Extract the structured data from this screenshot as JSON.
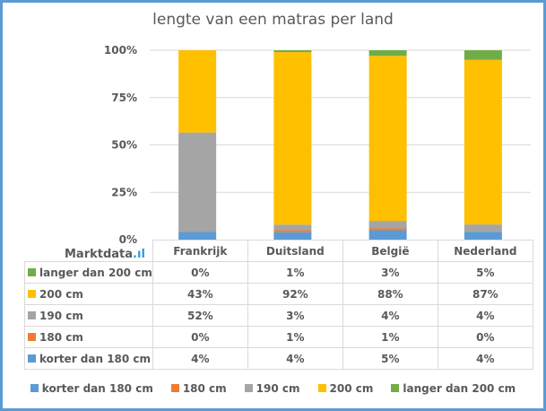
{
  "chart_data": {
    "type": "bar",
    "stacked": "percent",
    "title": "lengte van een matras per land",
    "categories": [
      "Frankrijk",
      "Duitsland",
      "België",
      "Nederland"
    ],
    "series": [
      {
        "name": "korter dan 180 cm",
        "color": "#5B9BD5",
        "values": [
          4,
          4,
          5,
          4
        ]
      },
      {
        "name": "180 cm",
        "color": "#ED7D31",
        "values": [
          0,
          1,
          1,
          0
        ]
      },
      {
        "name": "190 cm",
        "color": "#A5A5A5",
        "values": [
          52,
          3,
          4,
          4
        ]
      },
      {
        "name": "200 cm",
        "color": "#FFC000",
        "values": [
          43,
          92,
          88,
          87
        ]
      },
      {
        "name": "langer dan 200 cm",
        "color": "#70AD47",
        "values": [
          0,
          1,
          3,
          5
        ]
      }
    ],
    "yticks": [
      "0%",
      "25%",
      "50%",
      "75%",
      "100%"
    ],
    "ylim": [
      0,
      100
    ],
    "grid": true,
    "legend": "bottom",
    "data_table": true
  },
  "table_rows_order": [
    4,
    3,
    2,
    1,
    0
  ],
  "table_labels": [
    "0%",
    "1%",
    "3%",
    "5%"
  ],
  "logo": {
    "text": "Marktdata",
    "suffix": ".ıl"
  }
}
